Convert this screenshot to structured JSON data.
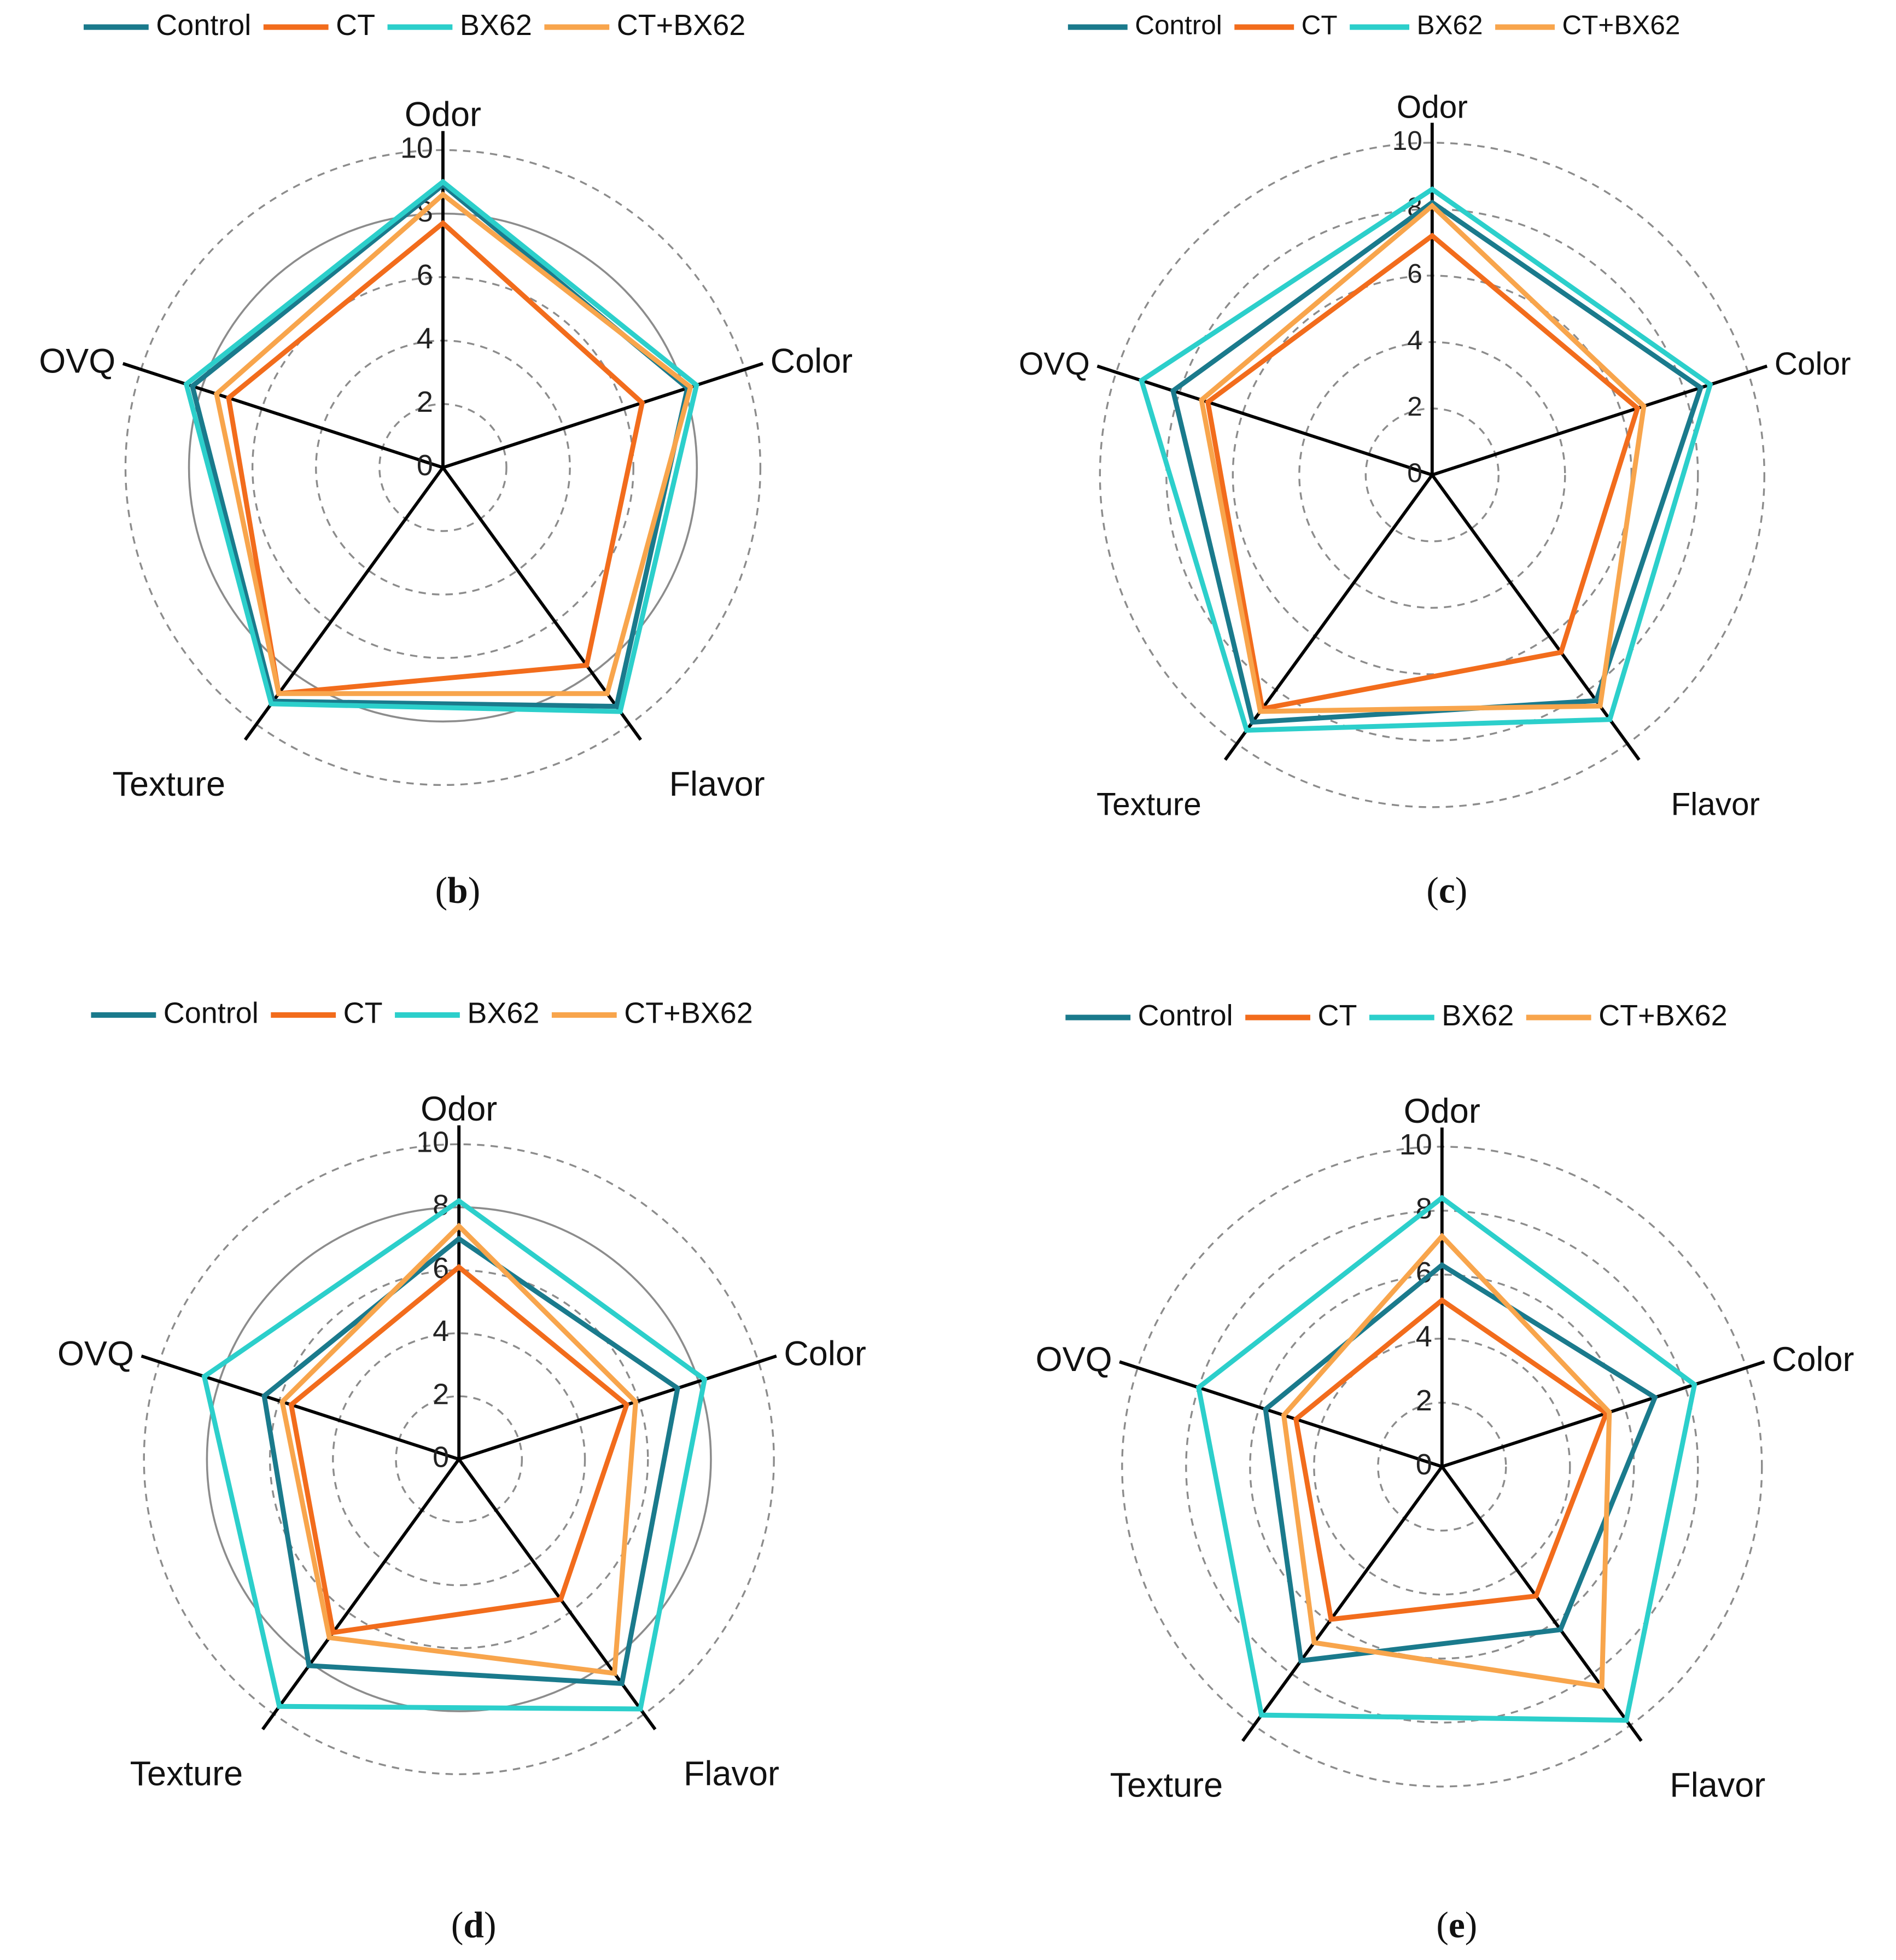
{
  "colors": {
    "control": "#1a7a8c",
    "ct": "#f26c1c",
    "bx62": "#2ccfcb",
    "ctbx62": "#f8a54c",
    "grid": "#8c8c8c",
    "axis": "#000000"
  },
  "chart_data": [
    {
      "panel_label": "b",
      "type": "radar",
      "axes": [
        "Odor",
        "Color",
        "Flavor",
        "Texture",
        "OVQ"
      ],
      "ticks": [
        "0",
        "2",
        "4",
        "6",
        "8",
        "10"
      ],
      "rlim": [
        0,
        10
      ],
      "legend": [
        "Control",
        "CT",
        "BX62",
        "CT+BX62"
      ],
      "series": [
        {
          "name": "Control",
          "values": [
            8.9,
            8.1,
            9.3,
            9.1,
            8.3
          ]
        },
        {
          "name": "CT",
          "values": [
            7.7,
            6.6,
            7.7,
            8.8,
            7.1
          ]
        },
        {
          "name": "BX62",
          "values": [
            9.0,
            8.4,
            9.5,
            9.2,
            8.5
          ]
        },
        {
          "name": "CT+BX62",
          "values": [
            8.6,
            8.2,
            8.8,
            8.8,
            7.5
          ]
        }
      ]
    },
    {
      "panel_label": "c",
      "type": "radar",
      "axes": [
        "Odor",
        "Color",
        "Flavor",
        "Texture",
        "OVQ"
      ],
      "ticks": [
        "0",
        "2",
        "4",
        "6",
        "8",
        "10"
      ],
      "rlim": [
        0,
        10
      ],
      "legend": [
        "Control",
        "CT",
        "BX62",
        "CT+BX62"
      ],
      "series": [
        {
          "name": "Control",
          "values": [
            8.2,
            8.5,
            8.4,
            9.2,
            8.2
          ]
        },
        {
          "name": "CT",
          "values": [
            7.2,
            6.5,
            6.6,
            8.7,
            7.1
          ]
        },
        {
          "name": "BX62",
          "values": [
            8.6,
            8.8,
            9.1,
            9.5,
            9.2
          ]
        },
        {
          "name": "CT+BX62",
          "values": [
            8.1,
            6.7,
            8.6,
            8.8,
            7.3
          ]
        }
      ]
    },
    {
      "panel_label": "d",
      "type": "radar",
      "axes": [
        "Odor",
        "Color",
        "Flavor",
        "Texture",
        "OVQ"
      ],
      "ticks": [
        "0",
        "2",
        "4",
        "6",
        "8",
        "10"
      ],
      "rlim": [
        0,
        10
      ],
      "legend": [
        "Control",
        "CT",
        "BX62",
        "CT+BX62"
      ],
      "series": [
        {
          "name": "Control",
          "values": [
            7.0,
            7.3,
            8.8,
            8.1,
            6.5
          ]
        },
        {
          "name": "CT",
          "values": [
            6.1,
            5.6,
            5.5,
            6.8,
            5.6
          ]
        },
        {
          "name": "BX62",
          "values": [
            8.2,
            8.2,
            9.8,
            9.7,
            8.5
          ]
        },
        {
          "name": "CT+BX62",
          "values": [
            7.4,
            5.9,
            8.4,
            7.0,
            5.9
          ]
        }
      ]
    },
    {
      "panel_label": "e",
      "type": "radar",
      "axes": [
        "Odor",
        "Color",
        "Flavor",
        "Texture",
        "OVQ"
      ],
      "ticks": [
        "0",
        "2",
        "4",
        "6",
        "8",
        "10"
      ],
      "rlim": [
        0,
        10
      ],
      "legend": [
        "Control",
        "CT",
        "BX62",
        "CT+BX62"
      ],
      "series": [
        {
          "name": "Control",
          "values": [
            6.3,
            7.0,
            6.3,
            7.5,
            5.8
          ]
        },
        {
          "name": "CT",
          "values": [
            5.2,
            5.4,
            5.0,
            5.9,
            4.8
          ]
        },
        {
          "name": "BX62",
          "values": [
            8.4,
            8.3,
            9.8,
            9.6,
            8.0
          ]
        },
        {
          "name": "CT+BX62",
          "values": [
            7.2,
            5.5,
            8.5,
            6.8,
            5.2
          ]
        }
      ]
    }
  ]
}
